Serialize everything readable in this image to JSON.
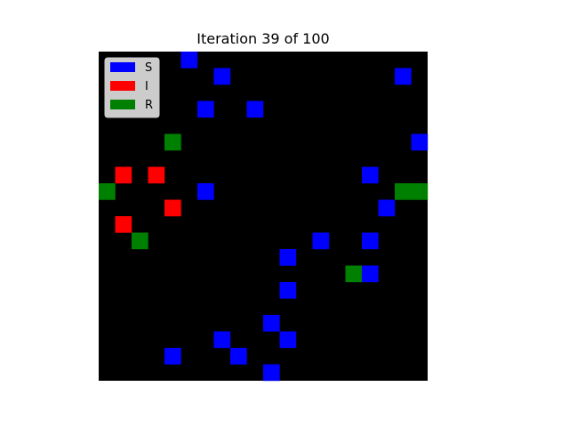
{
  "figure": {
    "title": "Iteration 39 of 100"
  },
  "chart_data": {
    "type": "heatmap",
    "title": "Iteration 39 of 100",
    "xlabel": "",
    "ylabel": "",
    "grid": false,
    "legend_position": "top-left",
    "grid_size": [
      20,
      20
    ],
    "background_color": "#000000",
    "states": [
      {
        "key": "S",
        "label": "S",
        "color": "#0000ff"
      },
      {
        "key": "I",
        "label": "I",
        "color": "#ff0000"
      },
      {
        "key": "R",
        "label": "R",
        "color": "#008000"
      }
    ],
    "cells": [
      {
        "col": 5,
        "row": 0,
        "state": "S"
      },
      {
        "col": 7,
        "row": 1,
        "state": "S"
      },
      {
        "col": 18,
        "row": 1,
        "state": "S"
      },
      {
        "col": 6,
        "row": 3,
        "state": "S"
      },
      {
        "col": 9,
        "row": 3,
        "state": "S"
      },
      {
        "col": 4,
        "row": 5,
        "state": "R"
      },
      {
        "col": 19,
        "row": 5,
        "state": "S"
      },
      {
        "col": 1,
        "row": 7,
        "state": "I"
      },
      {
        "col": 3,
        "row": 7,
        "state": "I"
      },
      {
        "col": 16,
        "row": 7,
        "state": "S"
      },
      {
        "col": 0,
        "row": 8,
        "state": "R"
      },
      {
        "col": 6,
        "row": 8,
        "state": "S"
      },
      {
        "col": 18,
        "row": 8,
        "state": "R"
      },
      {
        "col": 19,
        "row": 8,
        "state": "R"
      },
      {
        "col": 4,
        "row": 9,
        "state": "I"
      },
      {
        "col": 17,
        "row": 9,
        "state": "S"
      },
      {
        "col": 1,
        "row": 10,
        "state": "I"
      },
      {
        "col": 2,
        "row": 11,
        "state": "R"
      },
      {
        "col": 13,
        "row": 11,
        "state": "S"
      },
      {
        "col": 16,
        "row": 11,
        "state": "S"
      },
      {
        "col": 11,
        "row": 12,
        "state": "S"
      },
      {
        "col": 15,
        "row": 13,
        "state": "R"
      },
      {
        "col": 16,
        "row": 13,
        "state": "S"
      },
      {
        "col": 11,
        "row": 14,
        "state": "S"
      },
      {
        "col": 10,
        "row": 16,
        "state": "S"
      },
      {
        "col": 7,
        "row": 17,
        "state": "S"
      },
      {
        "col": 11,
        "row": 17,
        "state": "S"
      },
      {
        "col": 4,
        "row": 18,
        "state": "S"
      },
      {
        "col": 8,
        "row": 18,
        "state": "S"
      },
      {
        "col": 10,
        "row": 19,
        "state": "S"
      }
    ]
  }
}
